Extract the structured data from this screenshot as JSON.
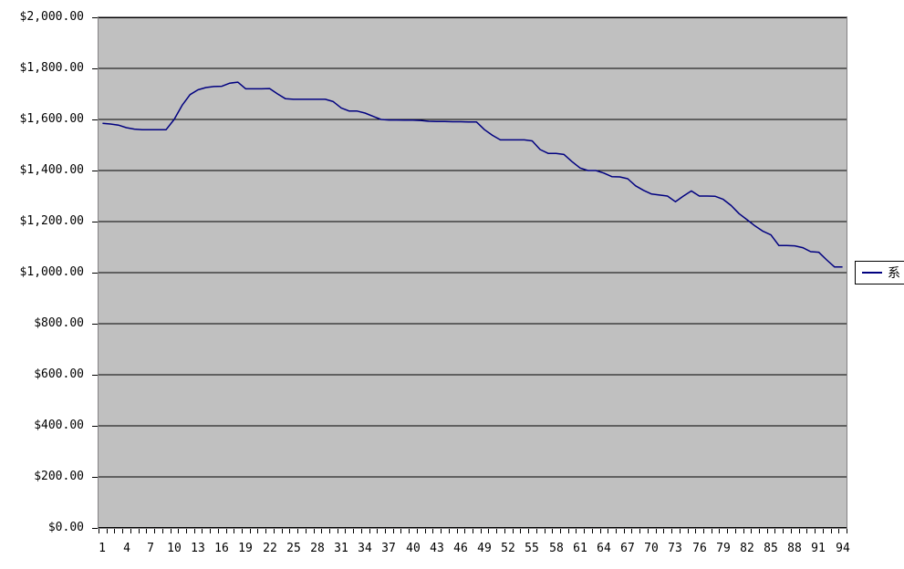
{
  "chart_data": {
    "type": "line",
    "title": "",
    "xlabel": "",
    "ylabel": "",
    "ylim": [
      0,
      2000
    ],
    "y_tick_step": 200,
    "grid": true,
    "legend_position": "right",
    "plot_background_color": "#c0c0c0",
    "gridline_color": "#000000",
    "y_tick_labels": [
      "$2,000.00",
      "$1,800.00",
      "$1,600.00",
      "$1,400.00",
      "$1,200.00",
      "$1,000.00",
      "$800.00",
      "$600.00",
      "$400.00",
      "$200.00",
      "$0.00"
    ],
    "x_tick_labels": [
      "1",
      "4",
      "7",
      "10",
      "13",
      "16",
      "19",
      "22",
      "25",
      "28",
      "31",
      "34",
      "37",
      "40",
      "43",
      "46",
      "49",
      "52",
      "55",
      "58",
      "61",
      "64",
      "67",
      "70",
      "73",
      "76",
      "79",
      "82",
      "85",
      "88",
      "91",
      "94"
    ],
    "x": [
      1,
      2,
      3,
      4,
      5,
      6,
      7,
      8,
      9,
      10,
      11,
      12,
      13,
      14,
      15,
      16,
      17,
      18,
      19,
      20,
      21,
      22,
      23,
      24,
      25,
      26,
      27,
      28,
      29,
      30,
      31,
      32,
      33,
      34,
      35,
      36,
      37,
      38,
      39,
      40,
      41,
      42,
      43,
      44,
      45,
      46,
      47,
      48,
      49,
      50,
      51,
      52,
      53,
      54,
      55,
      56,
      57,
      58,
      59,
      60,
      61,
      62,
      63,
      64,
      65,
      66,
      67,
      68,
      69,
      70,
      71,
      72,
      73,
      74,
      75,
      76,
      77,
      78,
      79,
      80,
      81,
      82,
      83,
      84,
      85,
      86,
      87,
      88,
      89,
      90,
      91,
      92,
      93,
      94
    ],
    "series": [
      {
        "name": "系",
        "color": "#000080",
        "values": [
          1585,
          1582,
          1578,
          1568,
          1562,
          1560,
          1560,
          1560,
          1560,
          1600,
          1655,
          1697,
          1716,
          1725,
          1729,
          1730,
          1742,
          1746,
          1720,
          1720,
          1720,
          1721,
          1700,
          1681,
          1679,
          1679,
          1679,
          1679,
          1679,
          1670,
          1645,
          1633,
          1633,
          1625,
          1612,
          1600,
          1598,
          1598,
          1597,
          1597,
          1596,
          1593,
          1592,
          1592,
          1591,
          1591,
          1590,
          1590,
          1560,
          1538,
          1520,
          1520,
          1520,
          1520,
          1516,
          1482,
          1467,
          1467,
          1463,
          1435,
          1410,
          1400,
          1400,
          1390,
          1376,
          1375,
          1368,
          1340,
          1322,
          1308,
          1304,
          1300,
          1278,
          1300,
          1320,
          1300,
          1300,
          1299,
          1287,
          1263,
          1231,
          1207,
          1183,
          1162,
          1148,
          1106,
          1106,
          1105,
          1098,
          1082,
          1080,
          1050,
          1022,
          1022
        ]
      }
    ]
  }
}
